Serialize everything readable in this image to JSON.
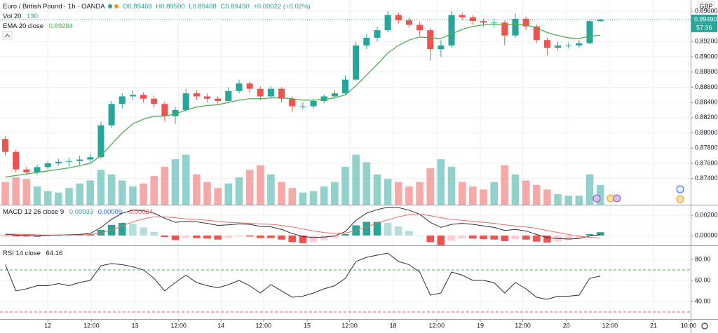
{
  "chart_data": [
    {
      "type": "candlestick",
      "title": "Euro / British Pound · 1h · OANDA",
      "ohlc_legend": [
        "O0.89468",
        "H0.89500",
        "L0.89468",
        "C0.89490",
        "+0.00022 (+0.02%)"
      ],
      "currency": "GBP",
      "price_label": "0.89490",
      "countdown": "57:36",
      "up_color": "#26a69a",
      "down_color": "#ef5350",
      "open": [
        0.8792,
        0.8775,
        0.8752,
        0.8748,
        0.8755,
        0.876,
        0.8762,
        0.8763,
        0.8765,
        0.8768,
        0.881,
        0.8838,
        0.8848,
        0.885,
        0.8845,
        0.8838,
        0.8822,
        0.883,
        0.8852,
        0.8848,
        0.8845,
        0.8842,
        0.8855,
        0.8865,
        0.8858,
        0.8848,
        0.8858,
        0.8845,
        0.8835,
        0.8835,
        0.8842,
        0.8848,
        0.8852,
        0.887,
        0.8915,
        0.8925,
        0.8935,
        0.8955,
        0.8948,
        0.8942,
        0.8935,
        0.891,
        0.8915,
        0.8955,
        0.8952,
        0.8947,
        0.8945,
        0.8945,
        0.8928,
        0.895,
        0.894,
        0.8922,
        0.8912,
        0.8915,
        0.8915,
        0.8918,
        0.89468
      ],
      "high": [
        0.8796,
        0.8778,
        0.8756,
        0.8758,
        0.8763,
        0.8766,
        0.8767,
        0.877,
        0.8772,
        0.8815,
        0.8842,
        0.8852,
        0.8856,
        0.8853,
        0.8849,
        0.8841,
        0.8834,
        0.8858,
        0.8856,
        0.8852,
        0.8848,
        0.886,
        0.887,
        0.8868,
        0.8861,
        0.8862,
        0.886,
        0.8848,
        0.884,
        0.8845,
        0.8851,
        0.8856,
        0.8875,
        0.892,
        0.893,
        0.894,
        0.896,
        0.8958,
        0.8952,
        0.8946,
        0.8938,
        0.8922,
        0.896,
        0.8958,
        0.8955,
        0.895,
        0.895,
        0.8948,
        0.8957,
        0.8953,
        0.8943,
        0.8925,
        0.892,
        0.8919,
        0.8922,
        0.8948,
        0.895
      ],
      "low": [
        0.877,
        0.8748,
        0.8744,
        0.8745,
        0.8752,
        0.8757,
        0.8756,
        0.8758,
        0.876,
        0.8766,
        0.8806,
        0.8832,
        0.8843,
        0.884,
        0.8833,
        0.8815,
        0.8812,
        0.8828,
        0.8843,
        0.884,
        0.8838,
        0.884,
        0.8852,
        0.8853,
        0.8843,
        0.8845,
        0.884,
        0.8828,
        0.8831,
        0.8832,
        0.8839,
        0.8845,
        0.885,
        0.8868,
        0.891,
        0.892,
        0.8932,
        0.8944,
        0.8938,
        0.8928,
        0.8895,
        0.89,
        0.8912,
        0.8948,
        0.8942,
        0.894,
        0.8938,
        0.8915,
        0.8925,
        0.8935,
        0.8918,
        0.8902,
        0.8908,
        0.8911,
        0.8912,
        0.8916,
        0.89468
      ],
      "close": [
        0.8775,
        0.8752,
        0.8748,
        0.8755,
        0.876,
        0.8762,
        0.8763,
        0.8765,
        0.8768,
        0.881,
        0.8838,
        0.8848,
        0.885,
        0.8845,
        0.8838,
        0.8822,
        0.883,
        0.8852,
        0.8848,
        0.8845,
        0.8842,
        0.8855,
        0.8865,
        0.8858,
        0.8848,
        0.8858,
        0.8845,
        0.8835,
        0.8835,
        0.8842,
        0.8848,
        0.8852,
        0.887,
        0.8915,
        0.8925,
        0.8935,
        0.8955,
        0.8948,
        0.8942,
        0.8935,
        0.891,
        0.8915,
        0.8955,
        0.8952,
        0.8947,
        0.8945,
        0.8945,
        0.8928,
        0.895,
        0.894,
        0.8922,
        0.8912,
        0.8915,
        0.8915,
        0.8918,
        0.89468,
        0.8949
      ],
      "ylim": [
        0.87056,
        0.89747
      ],
      "yticks": [
        {
          "value": 0.896,
          "label": "0.89600"
        },
        {
          "value": 0.892,
          "label": "0.89200"
        },
        {
          "value": 0.89,
          "label": "0.89000"
        },
        {
          "value": 0.888,
          "label": "0.88800"
        },
        {
          "value": 0.886,
          "label": "0.88600"
        },
        {
          "value": 0.884,
          "label": "0.88400"
        },
        {
          "value": 0.882,
          "label": "0.88200"
        },
        {
          "value": 0.88,
          "label": "0.88000"
        },
        {
          "value": 0.878,
          "label": "0.87800"
        },
        {
          "value": 0.876,
          "label": "0.87600"
        },
        {
          "value": 0.874,
          "label": "0.87400"
        }
      ],
      "volume": {
        "name": "Vol 20",
        "y2lim": [
          0,
          1350
        ],
        "values": [
          150,
          180,
          170,
          120,
          90,
          80,
          110,
          140,
          160,
          230,
          200,
          160,
          120,
          140,
          190,
          250,
          300,
          330,
          200,
          150,
          110,
          140,
          180,
          230,
          260,
          200,
          150,
          110,
          80,
          90,
          120,
          150,
          250,
          330,
          280,
          200,
          170,
          150,
          120,
          150,
          240,
          300,
          250,
          150,
          120,
          100,
          150,
          260,
          200,
          160,
          130,
          100,
          70,
          60,
          60,
          200,
          130
        ]
      },
      "ema": {
        "name": "EMA 20 close",
        "color": "#4caf50",
        "values": [
          0.8742,
          0.8744,
          0.8746,
          0.8748,
          0.875,
          0.8752,
          0.8754,
          0.8757,
          0.876,
          0.877,
          0.8785,
          0.88,
          0.8812,
          0.8818,
          0.8822,
          0.8822,
          0.8825,
          0.883,
          0.8834,
          0.8836,
          0.8837,
          0.884,
          0.8843,
          0.8845,
          0.8845,
          0.8846,
          0.8846,
          0.8845,
          0.8843,
          0.8843,
          0.8844,
          0.8846,
          0.885,
          0.8862,
          0.8876,
          0.889,
          0.8905,
          0.8915,
          0.8922,
          0.8926,
          0.8925,
          0.8924,
          0.893,
          0.8936,
          0.894,
          0.8942,
          0.8943,
          0.8942,
          0.8943,
          0.8942,
          0.8938,
          0.8932,
          0.8928,
          0.8925,
          0.8924,
          0.8927,
          0.89284
        ]
      }
    },
    {
      "type": "macd",
      "name": "MACD 12 26 close 9",
      "histogram_colors": [
        "#26a69a",
        "#b2dfdb",
        "#ffcdd2",
        "#ef5350"
      ],
      "histogram": [
        -5e-05,
        -8e-05,
        -0.0001,
        -0.00012,
        -5e-05,
        0,
        2e-05,
        5e-05,
        0.0001,
        0.00055,
        0.00105,
        0.00125,
        0.00115,
        0.0008,
        0.00035,
        -0.00015,
        -0.00045,
        -0.00025,
        -0.00025,
        -0.0003,
        -0.0004,
        -0.00025,
        -0.0001,
        -0.0001,
        -0.00025,
        -0.00025,
        -0.0004,
        -0.00065,
        -0.00075,
        -0.00065,
        -0.00045,
        -0.00025,
        0.00015,
        0.001,
        0.00135,
        0.00135,
        0.00125,
        0.0009,
        0.00045,
        0,
        -0.00065,
        -0.00095,
        -0.0005,
        -0.0003,
        -0.0003,
        -0.00035,
        -0.0004,
        -0.00055,
        -0.00035,
        -0.0004,
        -0.0006,
        -0.0007,
        -0.0006,
        -0.00045,
        -0.00025,
        0.00013,
        0.00033
      ],
      "macd": {
        "color": "#2a2e39",
        "values": [
          0.0001,
          5e-05,
          0,
          -5e-05,
          0,
          5e-05,
          8e-05,
          0.00012,
          0.0002,
          0.0008,
          0.0016,
          0.0022,
          0.0025,
          0.00245,
          0.0022,
          0.0017,
          0.0013,
          0.0014,
          0.00135,
          0.0012,
          0.001,
          0.00105,
          0.00115,
          0.0011,
          0.0009,
          0.00085,
          0.0006,
          0.0002,
          -0.0001,
          -0.0002,
          -0.00015,
          -5e-05,
          0.0004,
          0.0015,
          0.0022,
          0.00255,
          0.0028,
          0.00275,
          0.0025,
          0.0021,
          0.0013,
          0.0008,
          0.0011,
          0.0012,
          0.0011,
          0.00095,
          0.0008,
          0.0005,
          0.0006,
          0.00045,
          0.0001,
          -0.0002,
          -0.0003,
          -0.00035,
          -0.0003,
          -5e-05,
          9e-05
        ]
      },
      "signal": {
        "color": "#ef6c5a",
        "values": [
          0.00015,
          0.00013,
          0.0001,
          7e-05,
          5e-05,
          5e-05,
          6e-05,
          7e-05,
          0.0001,
          0.00025,
          0.00055,
          0.00095,
          0.00135,
          0.00165,
          0.00185,
          0.00185,
          0.00175,
          0.00165,
          0.0016,
          0.0015,
          0.0014,
          0.0013,
          0.00125,
          0.0012,
          0.00115,
          0.0011,
          0.001,
          0.00085,
          0.00065,
          0.00045,
          0.0003,
          0.0002,
          0.00025,
          0.0005,
          0.00085,
          0.0012,
          0.00155,
          0.00185,
          0.00205,
          0.0021,
          0.00195,
          0.00175,
          0.0016,
          0.0015,
          0.0014,
          0.0013,
          0.0012,
          0.00105,
          0.00095,
          0.00085,
          0.0007,
          0.0005,
          0.0003,
          0.0001,
          -5e-05,
          -0.00018,
          -0.00024
        ]
      },
      "ylim": [
        -0.00097,
        0.00297
      ],
      "yticks": [
        {
          "value": 0.002,
          "label": "0.00200"
        },
        {
          "value": 0,
          "label": "0.00000"
        }
      ]
    },
    {
      "type": "rsi",
      "name": "RSI 14 close",
      "color": "#2a2e39",
      "values": [
        75,
        50,
        52,
        55,
        55,
        57,
        55,
        58,
        60,
        74,
        76,
        75,
        73,
        70,
        62,
        50,
        58,
        65,
        58,
        55,
        53,
        56,
        60,
        55,
        48,
        56,
        50,
        44,
        45,
        48,
        52,
        55,
        62,
        78,
        82,
        84,
        86,
        78,
        75,
        68,
        46,
        48,
        68,
        65,
        60,
        60,
        58,
        48,
        58,
        52,
        44,
        42,
        45,
        45,
        46,
        62,
        64.16
      ],
      "levels": [
        70,
        30
      ],
      "level_colors": [
        "#4caf50",
        "#ef5350"
      ],
      "ylim": [
        23.3,
        92.7
      ],
      "yticks": [
        {
          "value": 80,
          "label": "80.00"
        },
        {
          "value": 60,
          "label": "60.00"
        },
        {
          "value": 40,
          "label": "40.00"
        }
      ],
      "xlim": [
        0,
        65
      ],
      "xticks": [
        {
          "value": 4.5,
          "label": "12"
        },
        {
          "value": 8.6,
          "label": "12:00"
        },
        {
          "value": 12.7,
          "label": "13"
        },
        {
          "value": 16.8,
          "label": "12:00"
        },
        {
          "value": 20.8,
          "label": "14"
        },
        {
          "value": 24.8,
          "label": "12:00"
        },
        {
          "value": 28.9,
          "label": "15"
        },
        {
          "value": 32.9,
          "label": "12:00"
        },
        {
          "value": 37.0,
          "label": "18"
        },
        {
          "value": 41.1,
          "label": "12:00"
        },
        {
          "value": 45.2,
          "label": "19"
        },
        {
          "value": 49.2,
          "label": "12:00"
        },
        {
          "value": 53.3,
          "label": "20"
        },
        {
          "value": 57.4,
          "label": "12:00"
        },
        {
          "value": 61.5,
          "label": "21"
        },
        {
          "value": 64.8,
          "label": "10:00"
        }
      ]
    }
  ]
}
